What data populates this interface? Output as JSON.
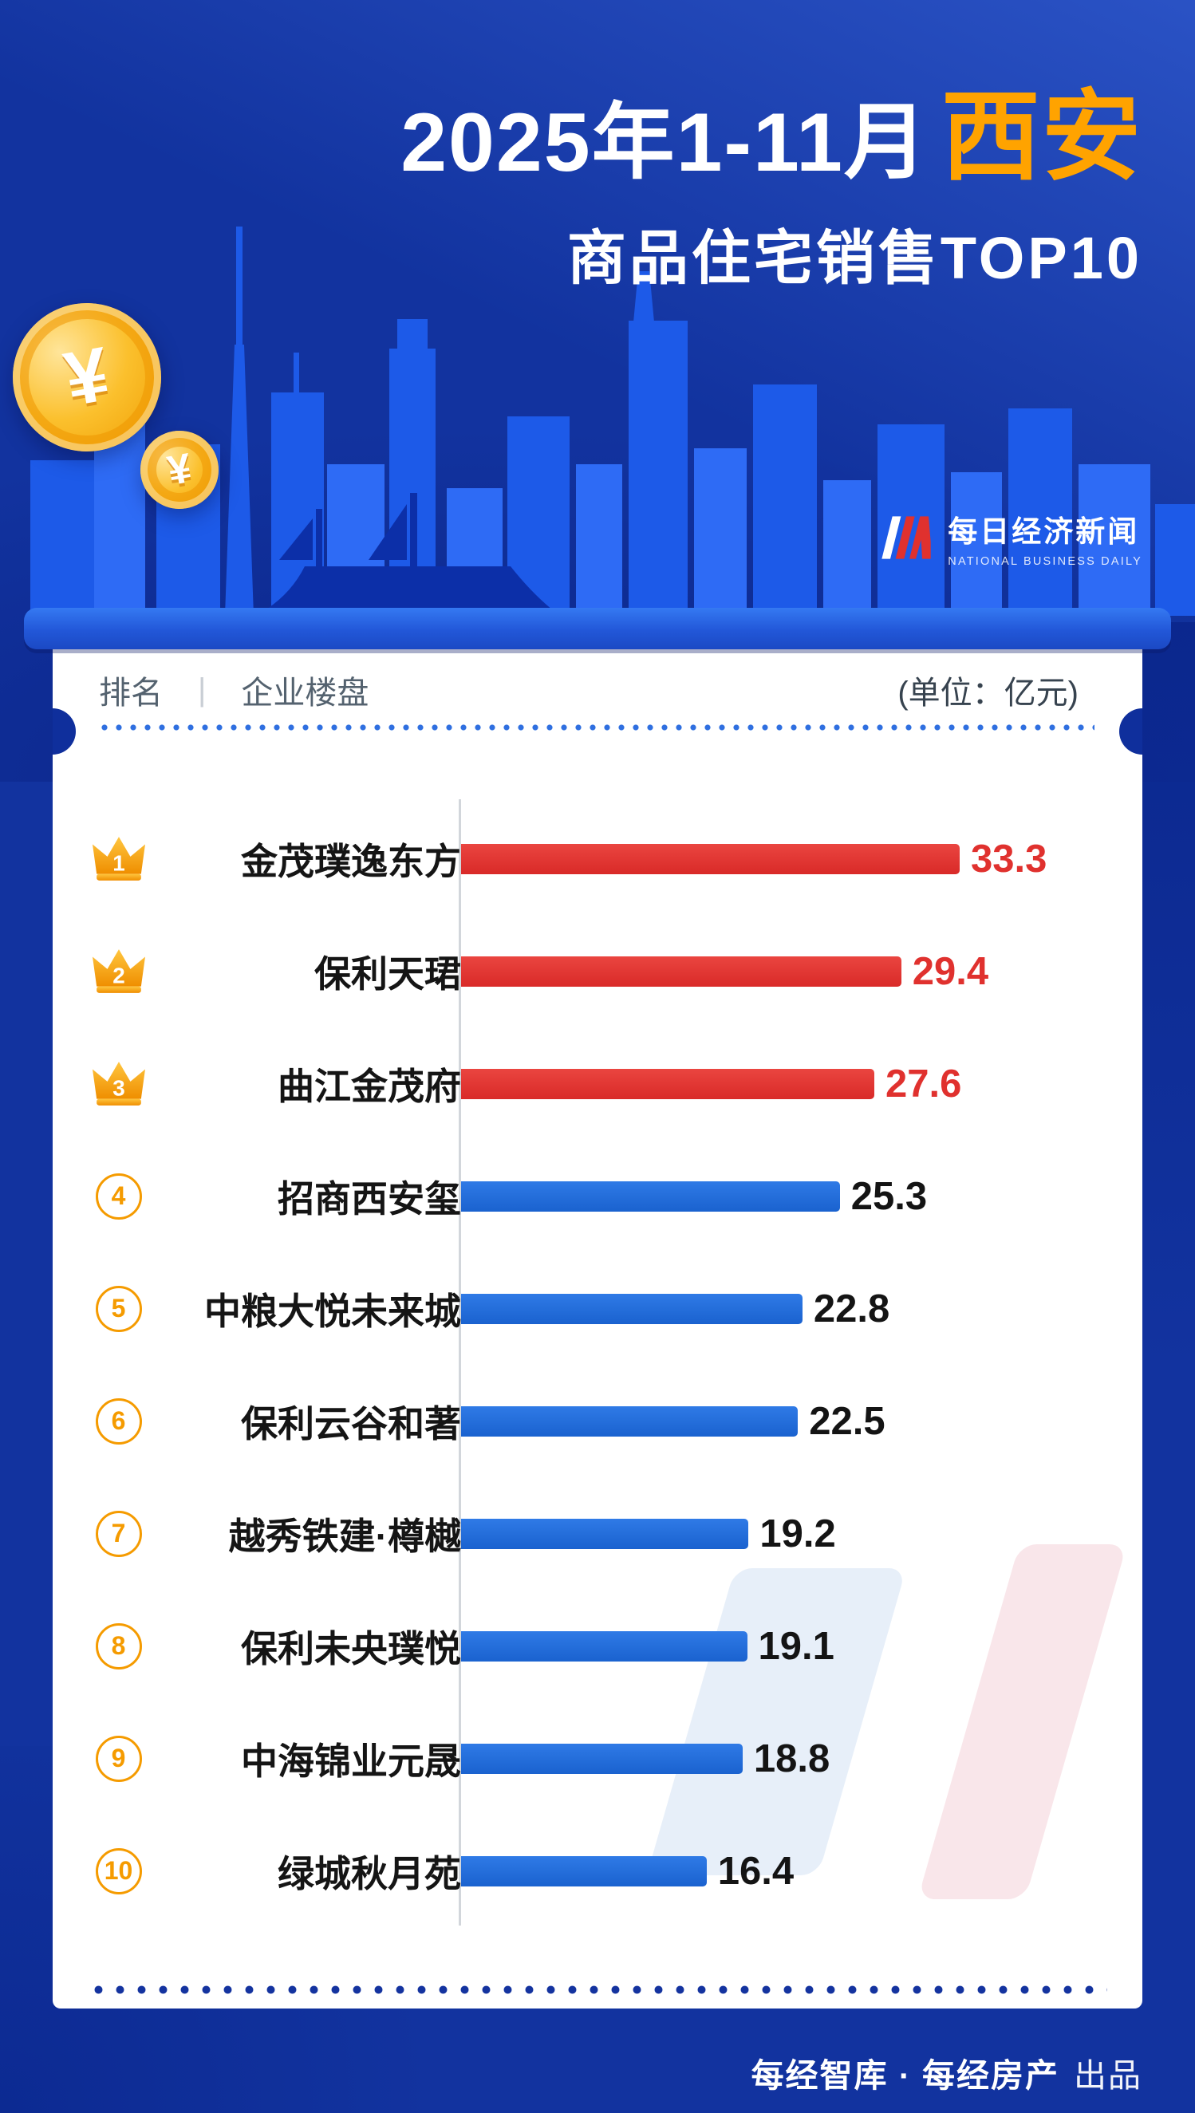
{
  "header": {
    "title_main": "2025年1-11月",
    "title_accent": "西安",
    "subtitle": "商品住宅销售TOP10",
    "logo_cn": "每日经济新闻",
    "logo_en": "NATIONAL BUSINESS DAILY",
    "coin_symbol": "¥"
  },
  "table_head": {
    "rank": "排名",
    "divider": "|",
    "name": "企业楼盘",
    "unit": "(单位：亿元)"
  },
  "chart_data": {
    "type": "bar",
    "orientation": "horizontal",
    "title": "2025年1-11月西安商品住宅销售TOP10",
    "unit": "亿元",
    "categories": [
      "金茂璞逸东方",
      "保利天珺",
      "曲江金茂府",
      "招商西安玺",
      "中粮大悦未来城",
      "保利云谷和著",
      "越秀铁建·樽樾",
      "保利未央璞悦",
      "中海锦业元晟",
      "绿城秋月苑"
    ],
    "values": [
      33.3,
      29.4,
      27.6,
      25.3,
      22.8,
      22.5,
      19.2,
      19.1,
      18.8,
      16.4
    ],
    "ranks": [
      1,
      2,
      3,
      4,
      5,
      6,
      7,
      8,
      9,
      10
    ],
    "xlim": [
      0,
      35
    ],
    "legend": "none",
    "grid": "off",
    "top3_bar_color": "#e0312e",
    "bar_color": "#1e6fd9",
    "top3_value_color": "#e0312e",
    "value_color": "#141414"
  },
  "footer": {
    "credit": "每经智库 · 每经房产",
    "suffix": "出品"
  },
  "colors": {
    "background": "#12339f",
    "accent_orange": "#ffa300",
    "card": "#ffffff",
    "skyline_blue": "#1d5ae8"
  }
}
